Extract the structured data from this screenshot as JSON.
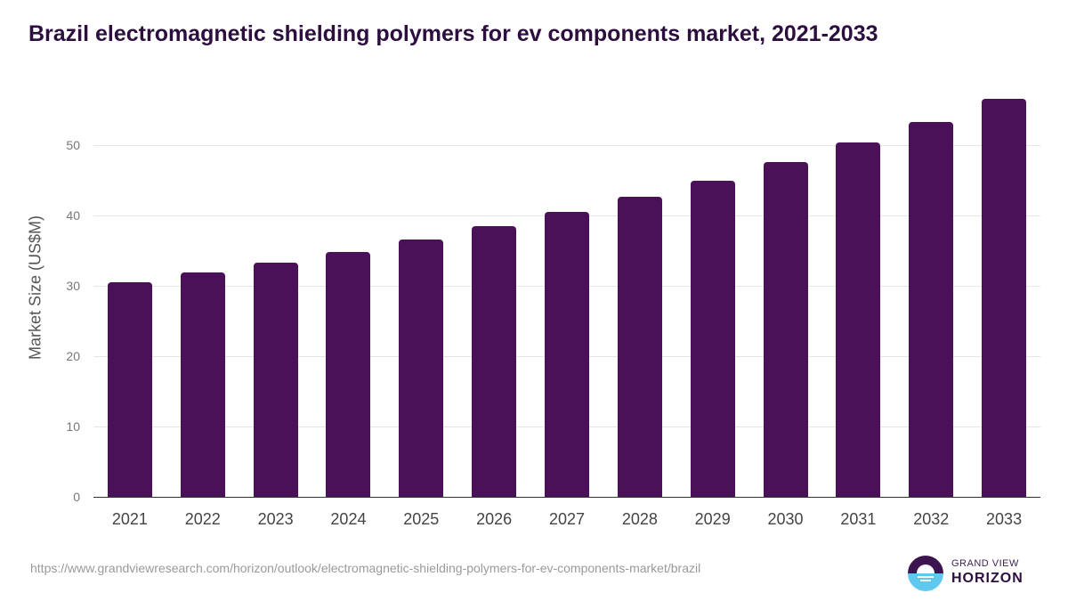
{
  "title": "Brazil electromagnetic shielding polymers for ev components market, 2021-2033",
  "source_url": "https://www.grandviewresearch.com/horizon/outlook/electromagnetic-shielding-polymers-for-ev-components-market/brazil",
  "logo": {
    "line1": "GRAND VIEW",
    "line2": "HORIZON"
  },
  "colors": {
    "bar": "#4b1158",
    "title": "#2d0f3f",
    "logo_top": "#3b1450",
    "logo_bottom": "#5ec8ee"
  },
  "chart_data": {
    "type": "bar",
    "title": "Brazil electromagnetic shielding polymers for ev components market, 2021-2033",
    "xlabel": "",
    "ylabel": "Market Size (US$M)",
    "categories": [
      "2021",
      "2022",
      "2023",
      "2024",
      "2025",
      "2026",
      "2027",
      "2028",
      "2029",
      "2030",
      "2031",
      "2032",
      "2033"
    ],
    "values": [
      30.5,
      31.9,
      33.3,
      34.8,
      36.6,
      38.5,
      40.5,
      42.7,
      44.9,
      47.6,
      50.4,
      53.3,
      56.6
    ],
    "yticks": [
      0,
      10,
      20,
      30,
      40,
      50
    ],
    "ylim": [
      0,
      60
    ],
    "grid": true,
    "legend": "none"
  }
}
